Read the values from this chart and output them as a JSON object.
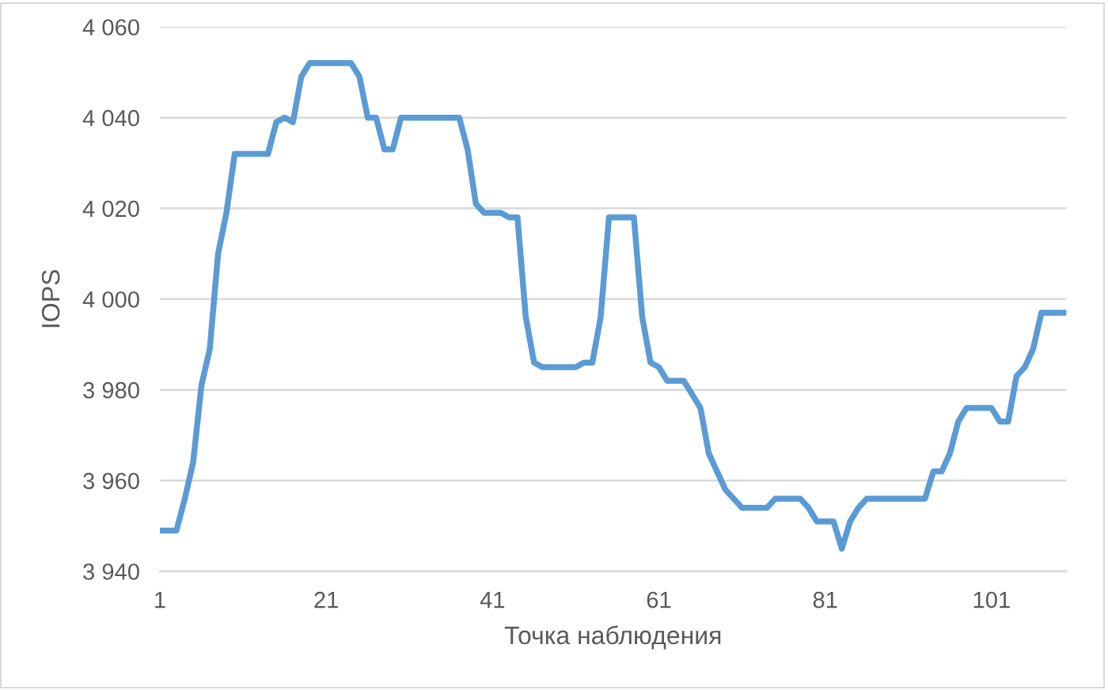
{
  "chart_data": {
    "type": "line",
    "xlabel": "Точка наблюдения",
    "ylabel": "IOPS",
    "x": [
      1,
      2,
      3,
      4,
      5,
      6,
      7,
      8,
      9,
      10,
      11,
      12,
      13,
      14,
      15,
      16,
      17,
      18,
      19,
      20,
      21,
      22,
      23,
      24,
      25,
      26,
      27,
      28,
      29,
      30,
      31,
      32,
      33,
      34,
      35,
      36,
      37,
      38,
      39,
      40,
      41,
      42,
      43,
      44,
      45,
      46,
      47,
      48,
      49,
      50,
      51,
      52,
      53,
      54,
      55,
      56,
      57,
      58,
      59,
      60,
      61,
      62,
      63,
      64,
      65,
      66,
      67,
      68,
      69,
      70,
      71,
      72,
      73,
      74,
      75,
      76,
      77,
      78,
      79,
      80,
      81,
      82,
      83,
      84,
      85,
      86,
      87,
      88,
      89,
      90,
      91,
      92,
      93,
      94,
      95,
      96,
      97,
      98,
      99,
      100,
      101,
      102,
      103,
      104,
      105,
      106,
      107,
      108,
      109,
      110
    ],
    "series": [
      {
        "color": "#5b9bd5",
        "values": [
          3949,
          3949,
          3949,
          3956,
          3964,
          3981,
          3989,
          4010,
          4019,
          4032,
          4032,
          4032,
          4032,
          4032,
          4039,
          4040,
          4039,
          4049,
          4052,
          4052,
          4052,
          4052,
          4052,
          4052,
          4049,
          4040,
          4040,
          4033,
          4033,
          4040,
          4040,
          4040,
          4040,
          4040,
          4040,
          4040,
          4040,
          4033,
          4021,
          4019,
          4019,
          4019,
          4018,
          4018,
          3996,
          3986,
          3985,
          3985,
          3985,
          3985,
          3985,
          3986,
          3986,
          3996,
          4018,
          4018,
          4018,
          4018,
          3996,
          3986,
          3985,
          3982,
          3982,
          3982,
          3979,
          3976,
          3966,
          3962,
          3958,
          3956,
          3954,
          3954,
          3954,
          3954,
          3956,
          3956,
          3956,
          3956,
          3954,
          3951,
          3951,
          3951,
          3945,
          3951,
          3954,
          3956,
          3956,
          3956,
          3956,
          3956,
          3956,
          3956,
          3956,
          3962,
          3962,
          3966,
          3973,
          3976,
          3976,
          3976,
          3976,
          3973,
          3973,
          3983,
          3985,
          3989,
          3997,
          3997,
          3997,
          3997
        ]
      }
    ],
    "xlim": [
      1,
      110
    ],
    "xticks": [
      1,
      21,
      41,
      61,
      81,
      101
    ],
    "ylim": [
      3940,
      4060
    ],
    "yticks": [
      {
        "value": 3940,
        "label": "3 940"
      },
      {
        "value": 3960,
        "label": "3 960"
      },
      {
        "value": 3980,
        "label": "3 980"
      },
      {
        "value": 4000,
        "label": "4 000"
      },
      {
        "value": 4020,
        "label": "4 020"
      },
      {
        "value": 4040,
        "label": "4 040"
      },
      {
        "value": 4060,
        "label": "4 060"
      }
    ],
    "grid": "y",
    "marker": "none",
    "line_style": "solid"
  }
}
